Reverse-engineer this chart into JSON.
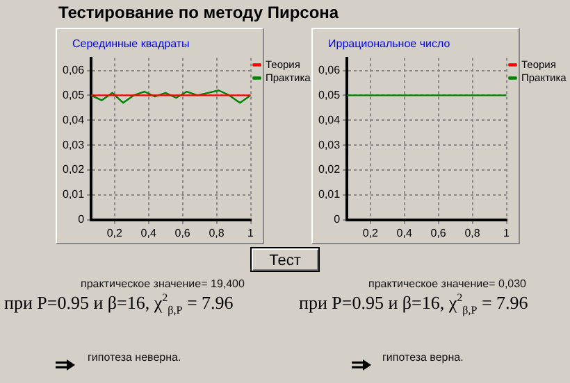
{
  "chart_data": [
    {
      "type": "line",
      "title": "Серединные квадраты",
      "x": [
        0.0625,
        0.125,
        0.1875,
        0.25,
        0.3125,
        0.375,
        0.4375,
        0.5,
        0.5625,
        0.625,
        0.6875,
        0.75,
        0.8125,
        0.875,
        0.9375,
        1
      ],
      "series": [
        {
          "name": "Теория",
          "color": "#ff0000",
          "values": [
            0.05,
            0.05,
            0.05,
            0.05,
            0.05,
            0.05,
            0.05,
            0.05,
            0.05,
            0.05,
            0.05,
            0.05,
            0.05,
            0.05,
            0.05,
            0.05
          ]
        },
        {
          "name": "Практика",
          "color": "#008000",
          "values": [
            0.05,
            0.048,
            0.051,
            0.047,
            0.05,
            0.0515,
            0.0495,
            0.051,
            0.049,
            0.0515,
            0.05,
            0.051,
            0.052,
            0.05,
            0.047,
            0.05
          ]
        }
      ],
      "xlim": [
        0.0625,
        1
      ],
      "xticks": [
        {
          "value": 0.2,
          "label": "0,2"
        },
        {
          "value": 0.4,
          "label": "0,4"
        },
        {
          "value": 0.6,
          "label": "0,6"
        },
        {
          "value": 0.8,
          "label": "0,8"
        },
        1
      ],
      "ylim": [
        0,
        0.065
      ],
      "yticks": [
        0,
        {
          "value": 0.01,
          "label": "0,01"
        },
        {
          "value": 0.02,
          "label": "0,02"
        },
        {
          "value": 0.03,
          "label": "0,03"
        },
        {
          "value": 0.04,
          "label": "0,04"
        },
        {
          "value": 0.05,
          "label": "0,05"
        },
        {
          "value": 0.06,
          "label": "0,06"
        }
      ],
      "grid": true,
      "legend": "top right",
      "marker": "none",
      "line_style": "solid"
    },
    {
      "type": "line",
      "title": "Иррациональное число",
      "x": [
        0.0625,
        0.125,
        0.1875,
        0.25,
        0.3125,
        0.375,
        0.4375,
        0.5,
        0.5625,
        0.625,
        0.6875,
        0.75,
        0.8125,
        0.875,
        0.9375,
        1
      ],
      "series": [
        {
          "name": "Теория",
          "color": "#ff0000",
          "values": [
            null,
            null,
            null,
            null,
            null,
            null,
            null,
            null,
            null,
            null,
            null,
            null,
            null,
            null,
            null,
            null
          ]
        },
        {
          "name": "Практика",
          "color": "#008000",
          "values": [
            0.05,
            0.05,
            0.05,
            0.05,
            0.05,
            0.05,
            0.05,
            0.05,
            0.05,
            0.05,
            0.05,
            0.05,
            0.05,
            0.05,
            0.05,
            0.05
          ]
        }
      ],
      "xlim": [
        0.0625,
        1
      ],
      "xticks": [
        {
          "value": 0.2,
          "label": "0,2"
        },
        {
          "value": 0.4,
          "label": "0,4"
        },
        {
          "value": 0.6,
          "label": "0,6"
        },
        {
          "value": 0.8,
          "label": "0,8"
        },
        1
      ],
      "ylim": [
        0,
        0.065
      ],
      "yticks": [
        0,
        {
          "value": 0.01,
          "label": "0,01"
        },
        {
          "value": 0.02,
          "label": "0,02"
        },
        {
          "value": 0.03,
          "label": "0,03"
        },
        {
          "value": 0.04,
          "label": "0,04"
        },
        {
          "value": 0.05,
          "label": "0,05"
        },
        {
          "value": 0.06,
          "label": "0,06"
        }
      ],
      "grid": true,
      "legend": "top right",
      "marker": "none",
      "line_style": "solid"
    },
    {
      "type": "other",
      "title": "Тестирование по методу Пирсона",
      "annotations": [
        "Тест",
        "практическое значение= 19,400",
        "практическое значение= 0,030",
        "при P=0.95 и β=16, χ$^{2}$$_{β,P}$ = 7.96",
        "при P=0.95 и β=16, χ$^{2}$$_{β,P}$ = 7.96",
        "гипотеза неверна.",
        "гипотеза верна."
      ]
    }
  ]
}
